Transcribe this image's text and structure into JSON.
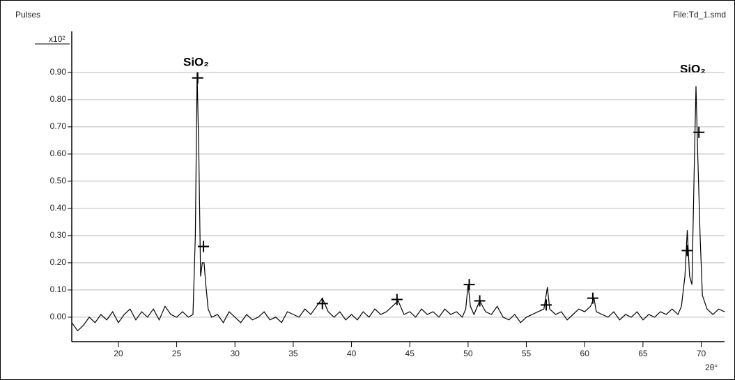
{
  "chart_data": {
    "type": "line",
    "y_label": "Pulses",
    "file_label": "File:Td_1.smd",
    "multiplier": "x10²",
    "x_label": "2θ°",
    "annotations": [
      "SiO₂",
      "SiO₂"
    ],
    "x": [
      16,
      16.5,
      17,
      17.5,
      18,
      18.5,
      19,
      19.5,
      20,
      20.5,
      21,
      21.5,
      22,
      22.5,
      23,
      23.5,
      24,
      24.5,
      25,
      25.5,
      26,
      26.4,
      26.6,
      26.75,
      26.9,
      27.05,
      27.2,
      27.35,
      27.5,
      27.7,
      28,
      28.5,
      29,
      29.5,
      30,
      30.5,
      31,
      31.5,
      32,
      32.5,
      33,
      33.5,
      34,
      34.5,
      35,
      35.5,
      36,
      36.5,
      37,
      37.5,
      38,
      38.5,
      39,
      39.5,
      40,
      40.5,
      41,
      41.5,
      42,
      42.5,
      43,
      43.5,
      44,
      44.5,
      45,
      45.5,
      46,
      46.5,
      47,
      47.5,
      48,
      48.5,
      49,
      49.5,
      49.8,
      50,
      50.2,
      50.5,
      51,
      51.5,
      52,
      52.5,
      53,
      53.5,
      54,
      54.5,
      55,
      55.5,
      56,
      56.5,
      56.8,
      57,
      57.5,
      58,
      58.5,
      59,
      59.5,
      60,
      60.5,
      60.8,
      61,
      61.5,
      62,
      62.5,
      63,
      63.5,
      64,
      64.5,
      65,
      65.5,
      66,
      66.5,
      67,
      67.5,
      68,
      68.3,
      68.6,
      68.8,
      69,
      69.2,
      69.4,
      69.55,
      69.7,
      69.9,
      70.1,
      70.5,
      71,
      71.5,
      72
    ],
    "series": [
      {
        "color": "#000000",
        "values": [
          -0.02,
          -0.05,
          -0.03,
          0.0,
          -0.02,
          0.01,
          -0.01,
          0.02,
          -0.02,
          0.01,
          0.03,
          -0.01,
          0.02,
          0.0,
          0.03,
          -0.01,
          0.04,
          0.01,
          0.0,
          0.02,
          0.0,
          0.01,
          0.3,
          0.9,
          0.6,
          0.15,
          0.2,
          0.2,
          0.12,
          0.03,
          0.0,
          0.01,
          -0.02,
          0.02,
          0.0,
          -0.02,
          0.01,
          -0.01,
          0.0,
          0.02,
          -0.01,
          0.0,
          -0.02,
          0.02,
          0.01,
          0.0,
          0.03,
          0.01,
          0.04,
          0.07,
          0.02,
          0.0,
          0.02,
          -0.01,
          0.01,
          -0.01,
          0.02,
          0.0,
          0.03,
          0.01,
          0.02,
          0.04,
          0.06,
          0.01,
          0.02,
          0.0,
          0.03,
          0.01,
          0.02,
          0.0,
          0.03,
          0.01,
          0.02,
          0.0,
          0.03,
          0.12,
          0.04,
          0.01,
          0.06,
          0.02,
          0.01,
          0.04,
          0.0,
          -0.01,
          0.01,
          -0.02,
          0.0,
          0.01,
          0.02,
          0.03,
          0.11,
          0.03,
          0.01,
          0.02,
          -0.01,
          0.01,
          0.03,
          0.02,
          0.04,
          0.07,
          0.02,
          0.01,
          0.0,
          0.02,
          -0.01,
          0.01,
          0.0,
          0.02,
          -0.01,
          0.01,
          0.0,
          0.02,
          0.01,
          0.03,
          0.01,
          0.04,
          0.15,
          0.32,
          0.15,
          0.12,
          0.55,
          0.85,
          0.6,
          0.3,
          0.08,
          0.03,
          0.01,
          0.03,
          0.02
        ]
      }
    ],
    "markers": {
      "x": [
        26.8,
        27.3,
        37.5,
        43.9,
        50.1,
        51.0,
        56.7,
        60.7,
        68.8,
        69.8
      ],
      "values": [
        0.88,
        0.26,
        0.05,
        0.065,
        0.12,
        0.06,
        0.045,
        0.07,
        0.245,
        0.68
      ]
    },
    "xlim": [
      16,
      72
    ],
    "xticks": [
      20,
      25,
      30,
      35,
      40,
      45,
      50,
      55,
      60,
      65,
      70
    ],
    "ylim": [
      -0.09,
      1.01
    ],
    "yticks": [
      {
        "value": 0,
        "label": "0.00"
      },
      {
        "value": 0.1,
        "label": "0.10"
      },
      {
        "value": 0.2,
        "label": "0.20"
      },
      {
        "value": 0.3,
        "label": "0.30"
      },
      {
        "value": 0.4,
        "label": "0.40"
      },
      {
        "value": 0.5,
        "label": "0.50"
      },
      {
        "value": 0.6,
        "label": "0.60"
      },
      {
        "value": 0.7,
        "label": "0.70"
      },
      {
        "value": 0.8,
        "label": "0.80"
      },
      {
        "value": 0.9,
        "label": "0.90"
      }
    ],
    "grid": true
  }
}
